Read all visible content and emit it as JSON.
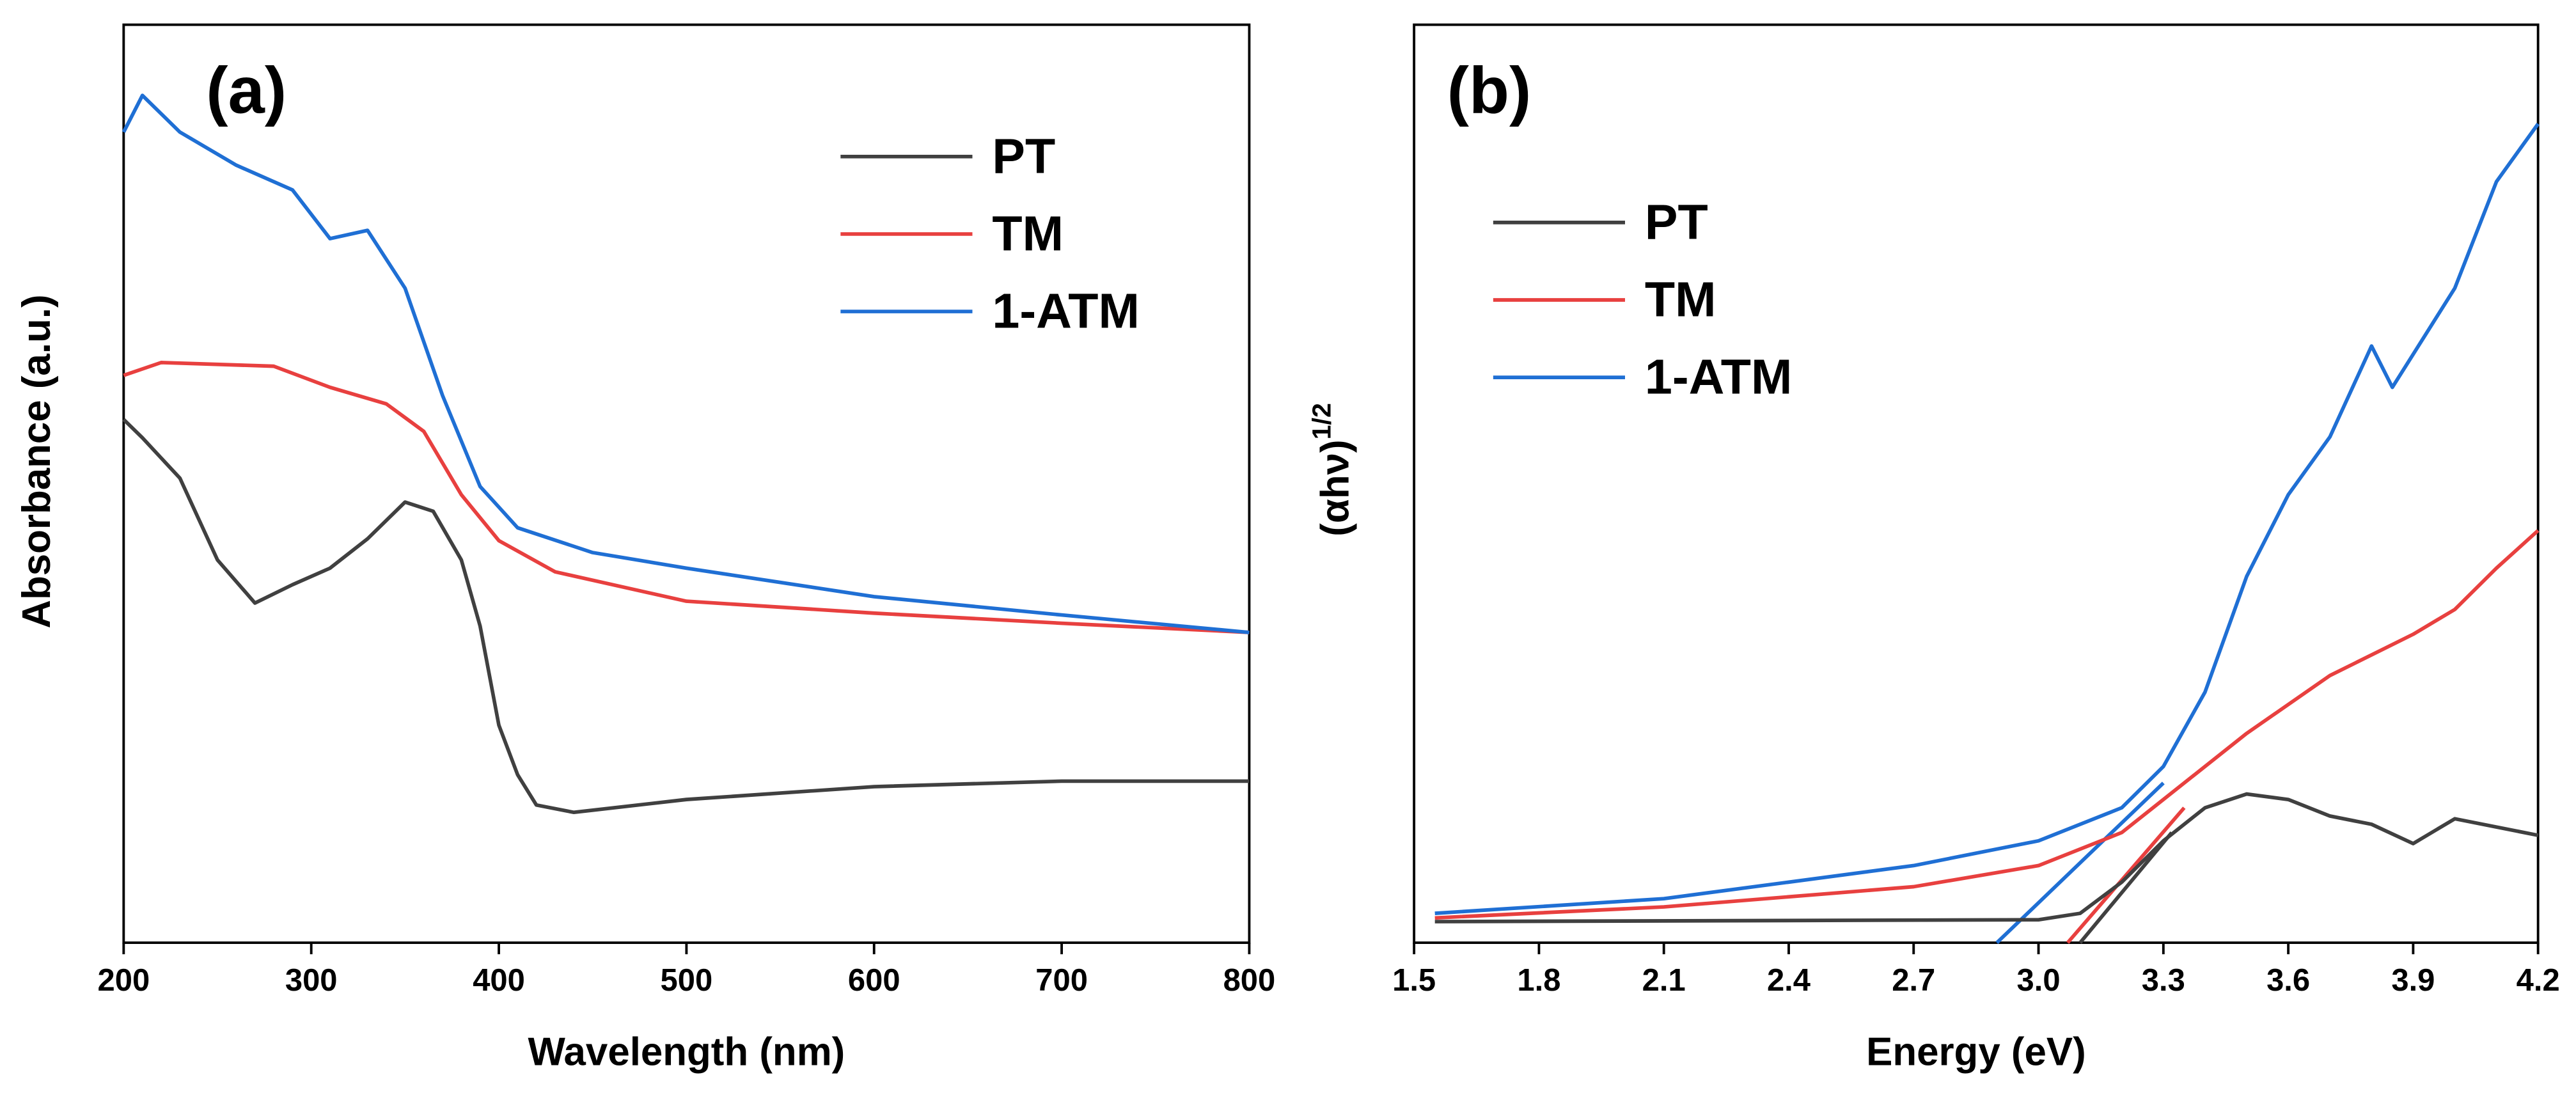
{
  "chart_data": [
    {
      "type": "line",
      "annotation": "(a)",
      "x_label": "Wavelength (nm)",
      "y_label": "Absorbance (a.u.)",
      "xlim": [
        200,
        800
      ],
      "xticks": [
        200,
        300,
        400,
        500,
        600,
        700,
        800
      ],
      "ylim": [
        0,
        100
      ],
      "legend": "upper right",
      "series": [
        {
          "name": "PT",
          "color": "#404040",
          "x": [
            200,
            210,
            230,
            250,
            270,
            290,
            310,
            330,
            350,
            365,
            380,
            390,
            400,
            410,
            420,
            440,
            500,
            600,
            700,
            800
          ],
          "values": [
            57,
            55,
            50.6,
            41.7,
            37,
            39,
            40.8,
            44,
            48,
            47,
            41.7,
            34.5,
            23.7,
            18.3,
            15,
            14.2,
            15.6,
            17,
            17.6,
            17.6
          ]
        },
        {
          "name": "TM",
          "color": "#e8403f",
          "x": [
            200,
            220,
            280,
            310,
            340,
            360,
            380,
            400,
            430,
            500,
            600,
            700,
            800
          ],
          "values": [
            61.8,
            63.2,
            62.8,
            60.5,
            58.7,
            55.7,
            48.8,
            43.8,
            40.4,
            37.2,
            35.9,
            34.8,
            33.8
          ]
        },
        {
          "name": "1-ATM",
          "color": "#1f6fd4",
          "x": [
            200,
            210,
            230,
            260,
            290,
            310,
            330,
            350,
            370,
            390,
            410,
            450,
            500,
            600,
            700,
            800
          ],
          "values": [
            88.3,
            92.3,
            88.3,
            84.7,
            82,
            76.7,
            77.6,
            71.3,
            59.6,
            49.7,
            45.2,
            42.5,
            40.8,
            37.7,
            35.7,
            33.8
          ]
        }
      ]
    },
    {
      "type": "line",
      "annotation": "(b)",
      "x_label": "Energy (eV)",
      "y_label": "(αhν)",
      "y_label_sup": "1/2",
      "xlim": [
        1.5,
        4.2
      ],
      "xticks": [
        1.5,
        1.8,
        2.1,
        2.4,
        2.7,
        {
          "value": 3.0,
          "label": "3.0"
        },
        3.3,
        3.6,
        3.9,
        4.2
      ],
      "ylim": [
        0,
        100
      ],
      "legend": "upper left",
      "series": [
        {
          "name": "PT",
          "color": "#404040",
          "x": [
            1.55,
            3.0,
            3.1,
            3.2,
            3.3,
            3.4,
            3.5,
            3.6,
            3.7,
            3.8,
            3.9,
            4.0,
            4.2
          ],
          "values": [
            2.3,
            2.5,
            3.2,
            6.6,
            11.1,
            14.7,
            16.2,
            15.6,
            13.8,
            12.9,
            10.8,
            13.5,
            11.7
          ]
        },
        {
          "name": "TM",
          "color": "#e8403f",
          "x": [
            1.55,
            2.1,
            2.7,
            3.0,
            3.2,
            3.3,
            3.5,
            3.7,
            3.9,
            4.0,
            4.1,
            4.2
          ],
          "values": [
            2.7,
            3.9,
            6.1,
            8.4,
            12,
            15.6,
            22.8,
            29.1,
            33.6,
            36.3,
            40.8,
            44.9
          ]
        },
        {
          "name": "1-ATM",
          "color": "#1f6fd4",
          "x": [
            1.55,
            2.1,
            2.7,
            3.0,
            3.2,
            3.3,
            3.4,
            3.5,
            3.6,
            3.7,
            3.8,
            3.85,
            3.9,
            4.0,
            4.1,
            4.2
          ],
          "values": [
            3.2,
            4.8,
            8.4,
            11.1,
            14.7,
            19.2,
            27.3,
            39.9,
            48.8,
            55.1,
            65,
            60.5,
            64.1,
            71.3,
            82.9,
            89.2
          ]
        }
      ],
      "fit_lines": [
        {
          "color": "#404040",
          "x": [
            3.1,
            3.32
          ],
          "values": [
            0,
            12
          ]
        },
        {
          "color": "#e8403f",
          "x": [
            3.07,
            3.35
          ],
          "values": [
            0,
            14.7
          ]
        },
        {
          "color": "#1f6fd4",
          "x": [
            2.9,
            3.3
          ],
          "values": [
            0,
            17.4
          ]
        }
      ]
    }
  ]
}
